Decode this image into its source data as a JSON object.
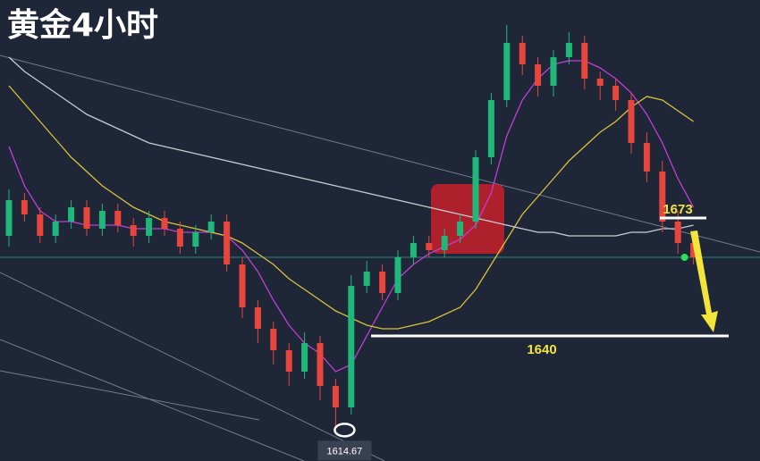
{
  "chart_data": {
    "type": "candlestick",
    "title": "黄金4小时",
    "ylim": [
      1605,
      1734
    ],
    "up_color": "#1fb77a",
    "down_color": "#e8463d",
    "open": [
      1668,
      1678,
      1674,
      1668,
      1672,
      1676,
      1670,
      1675,
      1671,
      1668,
      1673,
      1670,
      1665,
      1669,
      1672,
      1660,
      1648,
      1642,
      1636,
      1630,
      1638,
      1626,
      1620,
      1654,
      1658,
      1652,
      1662,
      1666,
      1664,
      1668,
      1672,
      1690,
      1706,
      1722,
      1716,
      1710,
      1718,
      1722,
      1712,
      1710,
      1706,
      1694,
      1686,
      1672,
      1666
    ],
    "high": [
      1681,
      1680,
      1676,
      1674,
      1678,
      1678,
      1677,
      1677,
      1673,
      1675,
      1675,
      1672,
      1671,
      1674,
      1674,
      1662,
      1650,
      1644,
      1638,
      1641,
      1640,
      1628,
      1657,
      1661,
      1660,
      1664,
      1668,
      1668,
      1670,
      1674,
      1692,
      1708,
      1727,
      1724,
      1718,
      1720,
      1725,
      1724,
      1714,
      1712,
      1708,
      1697,
      1689,
      1675,
      1669
    ],
    "low": [
      1665,
      1672,
      1666,
      1666,
      1670,
      1668,
      1668,
      1669,
      1665,
      1666,
      1668,
      1663,
      1663,
      1667,
      1658,
      1645,
      1638,
      1632,
      1626,
      1628,
      1622,
      1614.67,
      1618,
      1652,
      1650,
      1650,
      1660,
      1662,
      1662,
      1666,
      1670,
      1688,
      1704,
      1713,
      1707,
      1707,
      1716,
      1709,
      1706,
      1703,
      1691,
      1683,
      1669,
      1663,
      1660
    ],
    "close": [
      1678,
      1674,
      1668,
      1672,
      1676,
      1670,
      1675,
      1671,
      1668,
      1673,
      1670,
      1665,
      1669,
      1672,
      1660,
      1648,
      1642,
      1636,
      1630,
      1638,
      1626,
      1620,
      1654,
      1658,
      1652,
      1662,
      1666,
      1664,
      1668,
      1672,
      1690,
      1706,
      1722,
      1716,
      1710,
      1718,
      1722,
      1712,
      1710,
      1706,
      1694,
      1686,
      1672,
      1666,
      1662
    ],
    "ma": [
      {
        "color": "#c23fd6",
        "values": [
          1693,
          1682,
          1675,
          1672,
          1672,
          1671,
          1671,
          1671,
          1670,
          1670,
          1670,
          1669,
          1669,
          1669,
          1668,
          1664,
          1658,
          1650,
          1643,
          1638,
          1635,
          1630,
          1632,
          1640,
          1648,
          1656,
          1660,
          1663,
          1665,
          1667,
          1671,
          1680,
          1696,
          1706,
          1712,
          1716,
          1717,
          1717,
          1715,
          1712,
          1708,
          1702,
          1694,
          1684,
          1676
        ]
      },
      {
        "color": "#d9c23a",
        "values": [
          1710,
          1705,
          1700,
          1695,
          1690,
          1686,
          1682,
          1679,
          1676,
          1674,
          1672,
          1671,
          1670,
          1669,
          1668,
          1666,
          1663,
          1660,
          1656,
          1653,
          1650,
          1647,
          1645,
          1643,
          1642,
          1642,
          1643,
          1644,
          1646,
          1648,
          1653,
          1660,
          1667,
          1674,
          1679,
          1684,
          1689,
          1693,
          1697,
          1700,
          1704,
          1707,
          1706,
          1703,
          1700
        ]
      },
      {
        "color": "#c8ccd4",
        "values": [
          1718,
          1714,
          1711,
          1708,
          1705,
          1702,
          1700,
          1698,
          1696,
          1694,
          1693,
          1692,
          1691,
          1690,
          1689,
          1688,
          1687,
          1686,
          1685,
          1684,
          1683,
          1682,
          1681,
          1680,
          1679,
          1678,
          1677,
          1676,
          1675,
          1674,
          1673,
          1672,
          1671,
          1670,
          1669,
          1669,
          1668,
          1668,
          1668,
          1668,
          1669,
          1669,
          1670,
          1670,
          1671
        ]
      }
    ],
    "levels": [
      1673,
      1640
    ]
  }
}
